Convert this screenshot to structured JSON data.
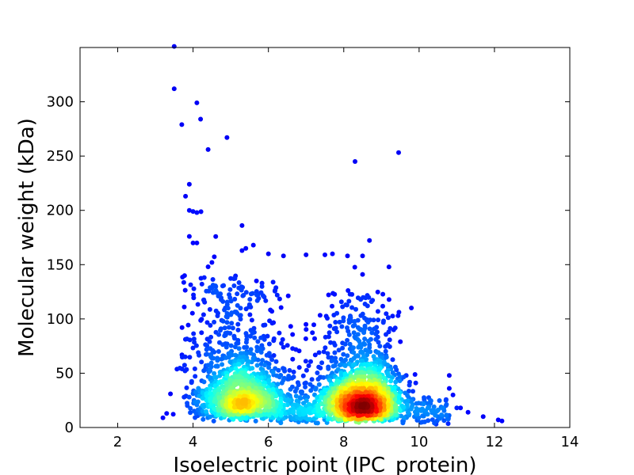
{
  "chart_data": {
    "type": "scatter",
    "title": "",
    "xlabel": "Isoelectric point (IPC_protein)",
    "ylabel": "Molecular weight (kDa)",
    "xlim": [
      1,
      14
    ],
    "ylim": [
      0,
      350
    ],
    "xticks": [
      2,
      4,
      6,
      8,
      10,
      12,
      14
    ],
    "yticks": [
      0,
      50,
      100,
      150,
      200,
      250,
      300
    ],
    "grid": false,
    "legend": "none",
    "color_scale": "density (blue = low, red = high)",
    "clusters": [
      {
        "center_x": 5.3,
        "center_y": 28,
        "density": "medium"
      },
      {
        "center_x": 8.5,
        "center_y": 24,
        "density": "high"
      },
      {
        "center_x": 6.9,
        "center_y": 18,
        "density": "low"
      }
    ],
    "outliers": [
      {
        "x": 3.5,
        "y": 351
      },
      {
        "x": 3.5,
        "y": 312
      },
      {
        "x": 4.1,
        "y": 299
      },
      {
        "x": 3.7,
        "y": 279
      },
      {
        "x": 4.2,
        "y": 284
      },
      {
        "x": 4.9,
        "y": 267
      },
      {
        "x": 4.4,
        "y": 256
      },
      {
        "x": 8.3,
        "y": 245
      },
      {
        "x": 3.9,
        "y": 224
      },
      {
        "x": 3.8,
        "y": 213
      },
      {
        "x": 3.9,
        "y": 200
      },
      {
        "x": 4.0,
        "y": 199
      },
      {
        "x": 4.1,
        "y": 198
      },
      {
        "x": 5.3,
        "y": 186
      },
      {
        "x": 3.9,
        "y": 176
      },
      {
        "x": 4.0,
        "y": 170
      },
      {
        "x": 4.1,
        "y": 170
      },
      {
        "x": 5.6,
        "y": 168
      },
      {
        "x": 5.4,
        "y": 165
      },
      {
        "x": 5.3,
        "y": 163
      },
      {
        "x": 6.0,
        "y": 160
      },
      {
        "x": 6.4,
        "y": 158
      },
      {
        "x": 7.0,
        "y": 159
      },
      {
        "x": 7.5,
        "y": 159
      },
      {
        "x": 7.7,
        "y": 160
      },
      {
        "x": 8.1,
        "y": 158
      },
      {
        "x": 8.5,
        "y": 158
      },
      {
        "x": 4.5,
        "y": 152
      },
      {
        "x": 4.4,
        "y": 148
      },
      {
        "x": 8.5,
        "y": 141
      },
      {
        "x": 10.8,
        "y": 48
      },
      {
        "x": 10.8,
        "y": 36
      },
      {
        "x": 10.9,
        "y": 30
      },
      {
        "x": 11.0,
        "y": 18
      },
      {
        "x": 11.1,
        "y": 18
      },
      {
        "x": 11.3,
        "y": 14
      },
      {
        "x": 11.7,
        "y": 10
      },
      {
        "x": 12.1,
        "y": 7
      },
      {
        "x": 12.2,
        "y": 6
      },
      {
        "x": 10.3,
        "y": 22
      },
      {
        "x": 10.5,
        "y": 10
      },
      {
        "x": 3.2,
        "y": 9
      },
      {
        "x": 3.3,
        "y": 13
      },
      {
        "x": 3.4,
        "y": 31
      }
    ]
  }
}
